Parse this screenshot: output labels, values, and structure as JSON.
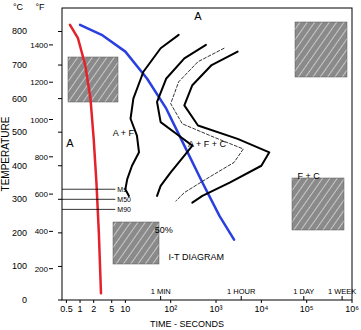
{
  "chart_data": {
    "type": "line",
    "title": "I-T DIAGRAM",
    "xlabel": "TIME - SECONDS",
    "ylabel": "TEMPERATURE",
    "y_unit": "°C",
    "y2_unit": "°F",
    "log": "x",
    "xlim": [
      0.4,
      1000000
    ],
    "xticks": [
      0.5,
      1,
      2,
      5,
      10,
      {
        "value": 100,
        "label": "10²"
      },
      {
        "value": 1000,
        "label": "10³"
      },
      {
        "value": 10000,
        "label": "10⁴"
      },
      {
        "value": 100000,
        "label": "10⁵"
      },
      {
        "value": 1000000,
        "label": "10⁶"
      }
    ],
    "ylim": [
      0,
      870
    ],
    "yticks": [
      0,
      100,
      200,
      300,
      400,
      500,
      600,
      700,
      800
    ],
    "y2lim": [
      32,
      1598
    ],
    "y2ticks": [
      200,
      400,
      600,
      800,
      1000,
      1200,
      1400
    ],
    "time_marks": [
      {
        "value": 60,
        "label": "1 MIN"
      },
      {
        "value": 3600,
        "label": "1 HOUR"
      },
      {
        "value": 86400,
        "label": "1 DAY"
      },
      {
        "value": 604800,
        "label": "1 WEEK"
      }
    ],
    "series": [
      {
        "color": "#e3232b",
        "line_style": "solid",
        "x": [
          0.6,
          0.9,
          1.3,
          1.7,
          2.0,
          2.3,
          2.6,
          2.9
        ],
        "values": [
          820,
          780,
          700,
          600,
          480,
          350,
          200,
          20
        ]
      },
      {
        "color": "#2a3fe0",
        "line_style": "solid",
        "x": [
          1,
          3,
          10,
          30,
          80,
          200,
          500,
          1200,
          2500
        ],
        "values": [
          820,
          790,
          740,
          660,
          570,
          460,
          350,
          250,
          180
        ]
      },
      {
        "color": "#000000",
        "line_style": "solid",
        "x": [
          150,
          60,
          25,
          15,
          13,
          18,
          20,
          14,
          11,
          10,
          12
        ],
        "values": [
          790,
          750,
          680,
          600,
          540,
          490,
          440,
          400,
          360,
          330,
          310
        ]
      },
      {
        "color": "#000000",
        "line_style": "solid",
        "x": [
          600,
          200,
          80,
          50,
          60,
          150,
          300,
          200,
          100,
          60,
          50
        ],
        "values": [
          760,
          720,
          660,
          590,
          530,
          490,
          460,
          430,
          380,
          340,
          310
        ]
      },
      {
        "color": "#000000",
        "line_style": "dashed",
        "x": [
          1500,
          400,
          150,
          100,
          180,
          900,
          4000,
          2500,
          600,
          200,
          130
        ],
        "values": [
          750,
          710,
          650,
          585,
          525,
          485,
          450,
          410,
          360,
          320,
          295
        ]
      },
      {
        "color": "#000000",
        "line_style": "solid",
        "x": [
          3000,
          800,
          300,
          200,
          400,
          3000,
          15000,
          10000,
          2000,
          500,
          300
        ],
        "values": [
          740,
          700,
          640,
          580,
          520,
          480,
          440,
          400,
          350,
          310,
          290
        ]
      }
    ],
    "horizontal_lines": [
      {
        "label": "Ms",
        "value": 330,
        "xmax": 6
      },
      {
        "label": "M50",
        "value": 300,
        "xmax": 6
      },
      {
        "label": "M90",
        "value": 270,
        "xmax": 6
      }
    ],
    "annotations": [
      {
        "text": "A",
        "x": 400,
        "y": 835
      },
      {
        "text": "A + F",
        "x": 9,
        "y": 490
      },
      {
        "text": "A",
        "x": 0.6,
        "y": 455
      },
      {
        "text": "A + F + C",
        "x": 240,
        "y": 455
      },
      {
        "text": "F + C",
        "x": 110000,
        "y": 362
      },
      {
        "text": "50%",
        "x": 70,
        "y": 200
      },
      {
        "text": "I-T DIAGRAM",
        "x": 90,
        "y": 120
      }
    ]
  }
}
